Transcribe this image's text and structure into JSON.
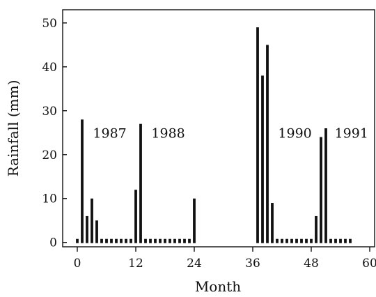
{
  "chart_data": {
    "type": "bar",
    "title": "",
    "xlabel": "Month",
    "ylabel": "Rainfall (mm)",
    "xlim": [
      -3,
      61
    ],
    "ylim": [
      -1,
      53
    ],
    "xticks": [
      0,
      12,
      24,
      36,
      48,
      60
    ],
    "yticks": [
      0,
      10,
      20,
      30,
      40,
      50
    ],
    "grid": false,
    "legend": "none",
    "bar_color": "#111111",
    "x": [
      0,
      1,
      2,
      3,
      4,
      5,
      6,
      7,
      8,
      9,
      10,
      11,
      12,
      13,
      14,
      15,
      16,
      17,
      18,
      19,
      20,
      21,
      22,
      23,
      24,
      37,
      38,
      39,
      40,
      41,
      42,
      43,
      44,
      45,
      46,
      47,
      48,
      49,
      50,
      51,
      52,
      53,
      54,
      55,
      56
    ],
    "values": [
      0,
      28,
      6,
      10,
      5,
      0,
      0,
      0,
      0,
      0,
      0,
      0,
      12,
      27,
      0,
      0,
      0,
      0,
      0,
      0,
      0,
      0,
      0,
      0,
      10,
      49,
      38,
      45,
      9,
      0,
      0,
      0,
      0,
      0,
      0,
      0,
      0,
      6,
      24,
      26,
      0,
      0,
      0,
      0,
      0
    ],
    "annotations": [
      {
        "text": "1987",
        "x": 3.2,
        "y": 25
      },
      {
        "text": "1988",
        "x": 15.2,
        "y": 25
      },
      {
        "text": "1990",
        "x": 41.2,
        "y": 25
      },
      {
        "text": "1991",
        "x": 52.8,
        "y": 25
      }
    ]
  }
}
